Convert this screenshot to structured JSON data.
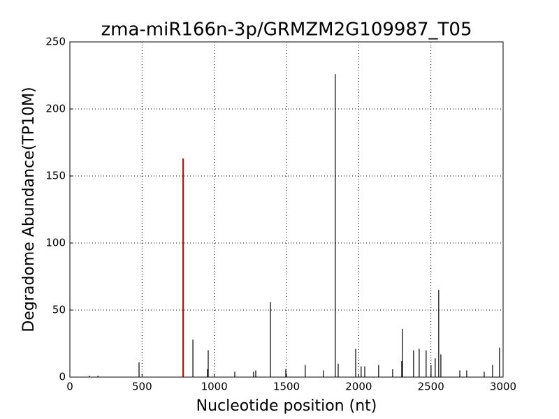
{
  "chart_data": {
    "type": "spike",
    "title": "zma-miR166n-3p/GRMZM2G109987_T05",
    "x_label": "Nucleotide position (nt)",
    "y_label": "Degradome Abundance(TP10M)",
    "xlim": [
      0,
      3000
    ],
    "xticks": [
      0,
      500,
      1000,
      1500,
      2000,
      2500,
      3000
    ],
    "ylim": [
      0,
      250
    ],
    "yticks": [
      0,
      50,
      100,
      150,
      200,
      250
    ],
    "grid": true,
    "series": [
      {
        "color": "#000000",
        "x": [
          135,
          194,
          479,
          852,
          953,
          958,
          1142,
          1272,
          1287,
          1389,
          1495,
          1630,
          1756,
          1838,
          1858,
          1979,
          2017,
          2042,
          2138,
          2235,
          2298,
          2303,
          2380,
          2419,
          2467,
          2501,
          2530,
          2554,
          2569,
          2700,
          2748,
          2869,
          2927,
          2975
        ],
        "values": [
          1,
          1,
          11,
          28,
          6,
          20,
          4,
          4,
          5,
          56,
          6,
          9,
          5,
          226,
          10,
          21,
          8,
          8,
          9,
          6,
          12,
          36,
          20,
          21,
          20,
          9,
          14,
          65,
          17,
          5,
          5,
          4,
          9,
          22
        ]
      },
      {
        "color": "#e00000",
        "x": [
          784
        ],
        "values": [
          163
        ]
      }
    ]
  }
}
